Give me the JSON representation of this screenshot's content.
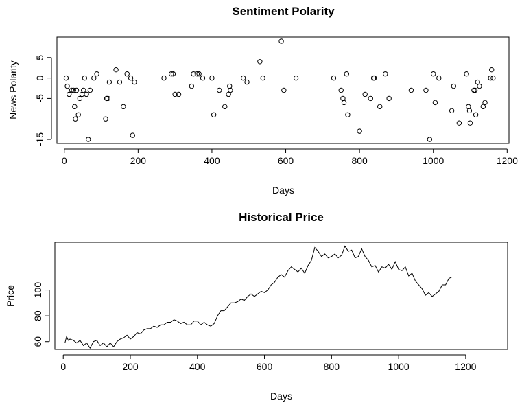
{
  "chart_data": [
    {
      "type": "scatter",
      "title": "Sentiment Polarity",
      "xlabel": "Days",
      "ylabel": "News Polarity",
      "xlim": [
        -20,
        1205
      ],
      "ylim": [
        -16,
        10
      ],
      "xticks": [
        0,
        200,
        400,
        600,
        800,
        1000,
        1200
      ],
      "yticks": [
        -15,
        -5,
        0,
        5
      ],
      "ytick_labels": [
        "-15",
        "-5",
        "0",
        "5"
      ],
      "x": [
        5,
        8,
        13,
        20,
        25,
        28,
        30,
        33,
        38,
        42,
        48,
        52,
        55,
        60,
        65,
        70,
        80,
        88,
        112,
        115,
        118,
        122,
        140,
        150,
        160,
        170,
        180,
        185,
        190,
        270,
        290,
        295,
        300,
        310,
        345,
        350,
        360,
        365,
        375,
        400,
        405,
        420,
        435,
        445,
        448,
        450,
        485,
        495,
        530,
        538,
        588,
        595,
        628,
        730,
        750,
        755,
        758,
        765,
        768,
        800,
        815,
        830,
        838,
        840,
        855,
        870,
        880,
        940,
        980,
        990,
        1000,
        1005,
        1015,
        1050,
        1055,
        1070,
        1090,
        1095,
        1098,
        1100,
        1110,
        1113,
        1115,
        1120,
        1125,
        1135,
        1140,
        1155,
        1158,
        1162
      ],
      "y": [
        0,
        -2,
        -4,
        -3,
        -3,
        -7,
        -10,
        -3,
        -9,
        -5,
        -4,
        -3,
        0,
        -4,
        -15,
        -3,
        0,
        1,
        -10,
        -5,
        -5,
        -1,
        2,
        -1,
        -7,
        1,
        0,
        -14,
        -1,
        0,
        1,
        1,
        -4,
        -4,
        -2,
        1,
        1,
        1,
        0,
        0,
        -9,
        -3,
        -7,
        -4,
        -2,
        -3,
        0,
        -1,
        4,
        0,
        9,
        -3,
        0,
        0,
        -3,
        -5,
        -6,
        1,
        -9,
        -13,
        -4,
        -5,
        0,
        0,
        -7,
        1,
        -5,
        -3,
        -3,
        -15,
        1,
        -6,
        0,
        -8,
        -2,
        -11,
        1,
        -7,
        -8,
        -11,
        -3,
        -3,
        -9,
        -1,
        -2,
        -7,
        -6,
        0,
        2,
        0
      ]
    },
    {
      "type": "line",
      "title": "Historical Price",
      "xlabel": "Days",
      "ylabel": "Price",
      "xlim": [
        -25,
        1325
      ],
      "ylim": [
        54,
        137
      ],
      "xticks": [
        0,
        200,
        400,
        600,
        800,
        1000,
        1200
      ],
      "yticks": [
        60,
        80,
        100
      ],
      "x": [
        5,
        10,
        15,
        20,
        30,
        40,
        50,
        60,
        70,
        80,
        90,
        100,
        110,
        120,
        130,
        140,
        150,
        160,
        170,
        180,
        190,
        200,
        210,
        220,
        230,
        240,
        250,
        260,
        270,
        280,
        290,
        300,
        310,
        320,
        330,
        340,
        350,
        360,
        370,
        380,
        390,
        400,
        410,
        420,
        430,
        440,
        450,
        460,
        470,
        480,
        490,
        500,
        510,
        520,
        530,
        540,
        550,
        560,
        570,
        580,
        590,
        600,
        610,
        620,
        630,
        640,
        650,
        660,
        670,
        680,
        690,
        700,
        710,
        720,
        730,
        740,
        750,
        760,
        770,
        780,
        790,
        800,
        810,
        820,
        830,
        840,
        850,
        860,
        870,
        880,
        890,
        900,
        910,
        920,
        930,
        940,
        950,
        960,
        970,
        980,
        990,
        1000,
        1010,
        1020,
        1030,
        1040,
        1050,
        1060,
        1070,
        1080,
        1090,
        1100,
        1110,
        1120,
        1130,
        1140,
        1150,
        1158
      ],
      "y": [
        59,
        64,
        61,
        62,
        61,
        59,
        61,
        57,
        59,
        55,
        60,
        61,
        57,
        59,
        56,
        59,
        56,
        60,
        62,
        63,
        65,
        62,
        64,
        67,
        66,
        69,
        70,
        70,
        72,
        71,
        73,
        73,
        75,
        75,
        77,
        76,
        74,
        75,
        73,
        73,
        76,
        76,
        73,
        75,
        73,
        72,
        74,
        80,
        84,
        84,
        87,
        90,
        90,
        91,
        93,
        92,
        95,
        97,
        95,
        97,
        99,
        98,
        100,
        104,
        106,
        110,
        112,
        110,
        115,
        118,
        116,
        114,
        117,
        113,
        119,
        123,
        133,
        130,
        126,
        128,
        125,
        126,
        128,
        125,
        127,
        134,
        130,
        131,
        125,
        126,
        132,
        126,
        123,
        118,
        119,
        114,
        118,
        117,
        120,
        116,
        122,
        116,
        115,
        118,
        111,
        113,
        107,
        104,
        101,
        96,
        98,
        95,
        97,
        99,
        104,
        104,
        109,
        110
      ]
    }
  ]
}
